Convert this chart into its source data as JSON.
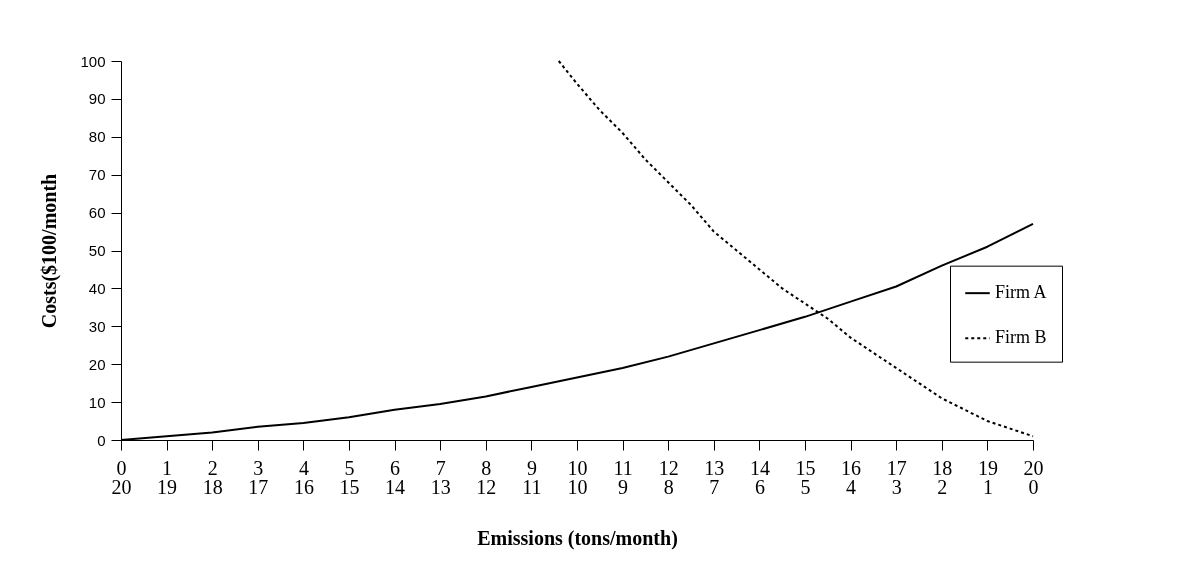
{
  "chart_data": {
    "type": "line",
    "xlabel": "Emissions (tons/month)",
    "ylabel": "Costs($100/month",
    "xlim": [
      0,
      20
    ],
    "xticks": [
      0,
      1,
      2,
      3,
      4,
      5,
      6,
      7,
      8,
      9,
      10,
      11,
      12,
      13,
      14,
      15,
      16,
      17,
      18,
      19,
      20
    ],
    "x2lim": [
      20,
      0
    ],
    "x2ticks": [
      20,
      19,
      18,
      17,
      16,
      15,
      14,
      13,
      12,
      11,
      10,
      9,
      8,
      7,
      6,
      5,
      4,
      3,
      2,
      1,
      0
    ],
    "ylim": [
      0,
      100
    ],
    "yticks": [
      0,
      10,
      20,
      30,
      40,
      50,
      60,
      70,
      80,
      90,
      100
    ],
    "grid": false,
    "legend": "right",
    "marker": "none",
    "series": [
      {
        "name": "Firm A",
        "color": "#000000",
        "line_style": "solid",
        "x": [
          0,
          1,
          2,
          3,
          4,
          5,
          6,
          7,
          8,
          9,
          10,
          11,
          12,
          13,
          14,
          15,
          16,
          17,
          18,
          19,
          20
        ],
        "values": [
          0,
          1,
          2,
          3.5,
          4.5,
          6,
          8,
          9.5,
          11.5,
          14,
          16.5,
          19,
          22,
          25.5,
          29,
          32.5,
          36.5,
          40.5,
          46,
          51,
          57
        ]
      },
      {
        "name": "Firm B",
        "color": "#000000",
        "line_style": "dotted",
        "x": [
          9.6,
          10,
          10.5,
          11,
          11.5,
          12,
          12.5,
          13,
          13.5,
          14,
          14.5,
          15,
          15.5,
          16,
          16.5,
          17,
          17.5,
          18,
          18.5,
          19,
          19.5,
          20
        ],
        "values": [
          100,
          94,
          87,
          81,
          74,
          68,
          62,
          55,
          50,
          45,
          40,
          36,
          32,
          27,
          23,
          19,
          15,
          11,
          8,
          5,
          3,
          1
        ]
      }
    ]
  }
}
